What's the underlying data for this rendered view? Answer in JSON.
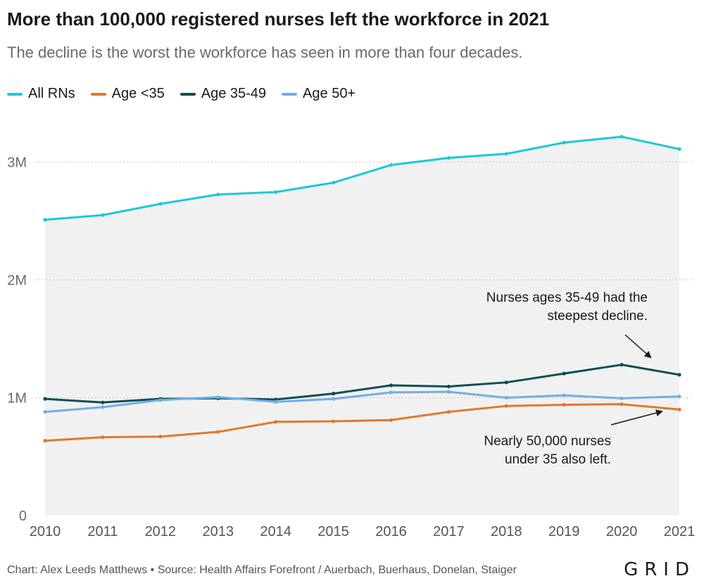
{
  "title": "More than 100,000 registered nurses left the workforce in 2021",
  "subtitle": "The decline is the worst the workforce has seen in more than four decades.",
  "footer": "Chart: Alex Leeds Matthews • Source: Health Affairs Forefront / Auerbach, Buerhaus, Donelan, Staiger",
  "logo": "GRID",
  "annotations": {
    "top": [
      "Nurses ages 35-49 had the",
      "steepest decline."
    ],
    "bottom": [
      "Nearly 50,000 nurses",
      "under 35 also left."
    ]
  },
  "colors": {
    "all_rns": "#1ec8d6",
    "age_lt35": "#e2782c",
    "age_35_49": "#0b4f55",
    "age_50plus": "#72aee6",
    "area_fill": "#f1f1f1",
    "grid": "#c8c8c8"
  },
  "chart_data": {
    "type": "line",
    "x": [
      2010,
      2011,
      2012,
      2013,
      2014,
      2015,
      2016,
      2017,
      2018,
      2019,
      2020,
      2021
    ],
    "yticks": [
      0,
      1000000,
      2000000,
      3000000
    ],
    "ytick_labels": [
      "0",
      "1M",
      "2M",
      "3M"
    ],
    "ylim": [
      0,
      3450000
    ],
    "grid": true,
    "legend": "top-left",
    "series": [
      {
        "name": "All RNs",
        "color": "#1ec8d6",
        "area": true,
        "values": [
          2510000,
          2550000,
          2645000,
          2725000,
          2745000,
          2825000,
          2975000,
          3035000,
          3070000,
          3165000,
          3215000,
          3110000
        ]
      },
      {
        "name": "Age <35",
        "color": "#e2782c",
        "values": [
          635000,
          665000,
          670000,
          710000,
          795000,
          800000,
          810000,
          880000,
          930000,
          940000,
          945000,
          900000
        ]
      },
      {
        "name": "Age 35-49",
        "color": "#0b4f55",
        "values": [
          990000,
          960000,
          990000,
          995000,
          985000,
          1035000,
          1105000,
          1095000,
          1130000,
          1205000,
          1280000,
          1195000
        ]
      },
      {
        "name": "Age 50+",
        "color": "#72aee6",
        "values": [
          880000,
          920000,
          980000,
          1005000,
          965000,
          990000,
          1045000,
          1050000,
          1000000,
          1020000,
          995000,
          1010000
        ]
      }
    ]
  }
}
